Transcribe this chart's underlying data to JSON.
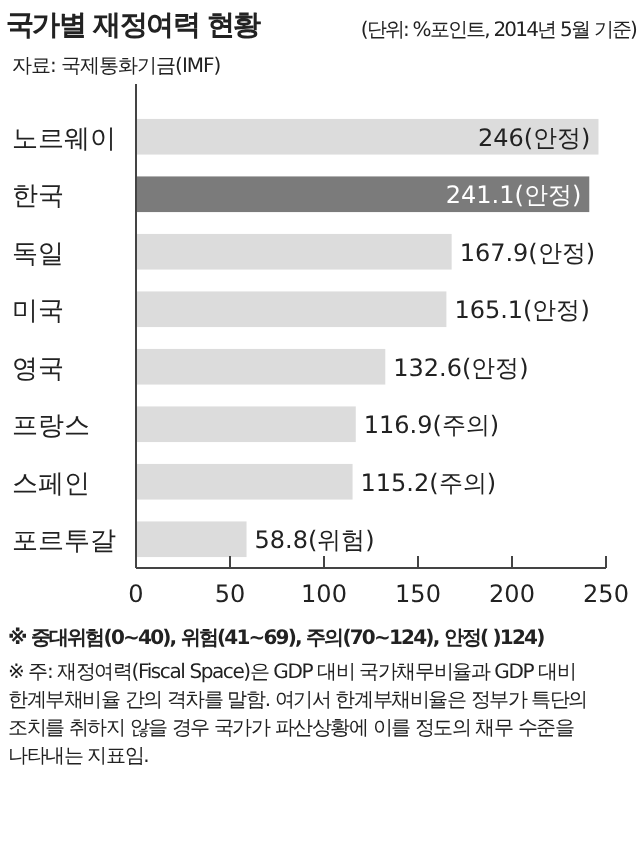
{
  "chart_data": {
    "type": "bar",
    "orientation": "horizontal",
    "title": "국가별 재정여력 현황",
    "subtitle": "(단위: %포인트, 2014년 5월 기준)",
    "categories": [
      "노르웨이",
      "한국",
      "독일",
      "미국",
      "영국",
      "프랑스",
      "스페인",
      "포르투갈"
    ],
    "values": [
      246,
      241.1,
      167.9,
      165.1,
      132.6,
      116.9,
      115.2,
      58.8
    ],
    "value_labels": [
      "246(안정)",
      "241.1(안정)",
      "167.9(안정)",
      "165.1(안정)",
      "132.6(안정)",
      "116.9(주의)",
      "115.2(주의)",
      "58.8(위험)"
    ],
    "colors": [
      "#dcdcdc",
      "#7b7b7b",
      "#dcdcdc",
      "#dcdcdc",
      "#dcdcdc",
      "#dcdcdc",
      "#dcdcdc",
      "#dcdcdc"
    ],
    "xlim": [
      0,
      250
    ],
    "xticks": [
      0,
      50,
      100,
      150,
      200,
      250
    ],
    "grid": false,
    "annotations": [
      "자료: 국제통화기금(IMF)",
      "※ 중대위험(0~40), 위험(41~69), 주의(70~124), 안정( )124)",
      "※ 주: 재정여력(Fiscal Space)은 GDP 대비 국가채무비율과 GDP 대비 한계부채비율 간의 격차를 말함. 여기서 한계부채비율은 정부가 특단의 조치를 취하지 않을 경우 국가가 파산상황에 이를 정도의 채무 수준을 나타내는 지표임."
    ]
  }
}
